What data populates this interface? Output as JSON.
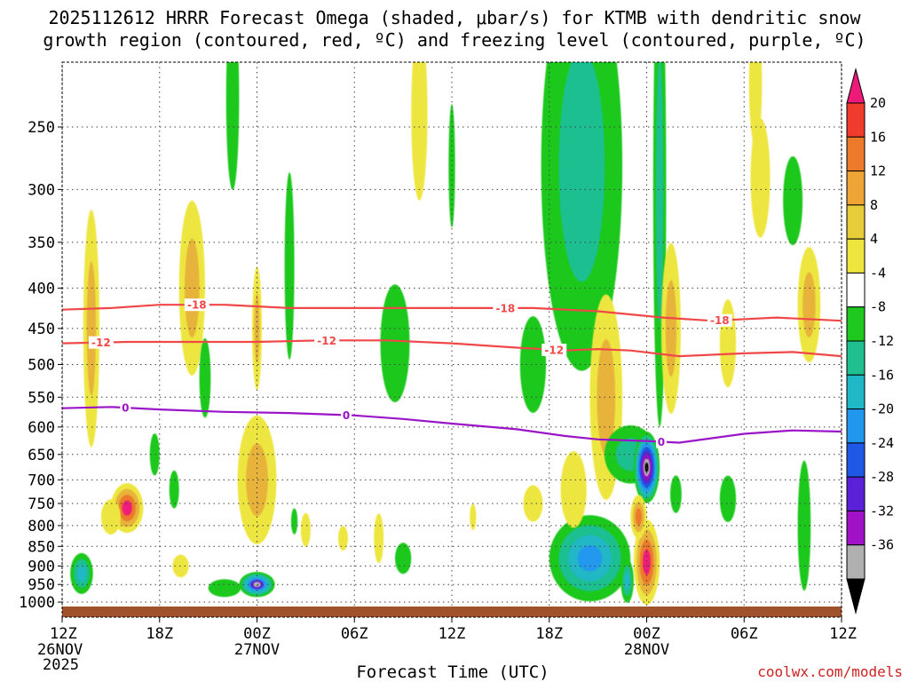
{
  "chart_data": {
    "type": "heatmap",
    "title_line1": "2025112612 HRRR Forecast Omega (shaded, μbar/s) for KTMB with dendritic snow",
    "title_line2": "growth region (contoured, red, ºC) and freezing level (contoured, purple, ºC)",
    "xlabel": "Forecast Time (UTC)",
    "credit": "coolwx.com/models",
    "x_hours_range": [
      0,
      48
    ],
    "x_ticks": [
      {
        "hour": 0,
        "label": "12Z",
        "sub1": "26NOV",
        "sub2": "2025"
      },
      {
        "hour": 6,
        "label": "18Z"
      },
      {
        "hour": 12,
        "label": "00Z",
        "sub1": "27NOV"
      },
      {
        "hour": 18,
        "label": "06Z"
      },
      {
        "hour": 24,
        "label": "12Z"
      },
      {
        "hour": 30,
        "label": "18Z"
      },
      {
        "hour": 36,
        "label": "00Z",
        "sub1": "28NOV"
      },
      {
        "hour": 42,
        "label": "06Z"
      },
      {
        "hour": 48,
        "label": "12Z"
      }
    ],
    "y_pressure_range": [
      1025,
      200
    ],
    "y_ticks": [
      250,
      300,
      350,
      400,
      450,
      500,
      550,
      600,
      650,
      700,
      750,
      800,
      850,
      900,
      950,
      1000
    ],
    "colorbar": {
      "labels": [
        "20",
        "16",
        "12",
        "8",
        "4",
        "-4",
        "-8",
        "-12",
        "-16",
        "-20",
        "-24",
        "-28",
        "-32",
        "-36"
      ],
      "colors": [
        "#ee1a7a",
        "#f03c2d",
        "#ec7a2a",
        "#efa535",
        "#e7cd3a",
        "#eee63f",
        "#ffffff",
        "#1ec81e",
        "#1fbf8f",
        "#20b7c6",
        "#2198ee",
        "#1f58e6",
        "#5a21d8",
        "#a011c8",
        "#b0b0b0",
        "#000000"
      ]
    },
    "contours": [
      {
        "name": "dgz-top",
        "value": -18,
        "color": "#f04848",
        "points": [
          [
            0,
            426
          ],
          [
            3,
            424
          ],
          [
            6,
            420
          ],
          [
            10,
            420
          ],
          [
            14,
            424
          ],
          [
            19,
            424
          ],
          [
            24,
            424
          ],
          [
            29,
            424
          ],
          [
            33,
            428
          ],
          [
            37,
            436
          ],
          [
            40,
            440
          ],
          [
            44,
            436
          ],
          [
            48,
            440
          ]
        ],
        "labels": [
          [
            8.3,
            -18
          ],
          [
            27.3,
            -18
          ],
          [
            40.5,
            -18
          ]
        ]
      },
      {
        "name": "dgz-bottom",
        "value": -12,
        "color": "#f04848",
        "points": [
          [
            0,
            470
          ],
          [
            4,
            468
          ],
          [
            8,
            468
          ],
          [
            12,
            468
          ],
          [
            16,
            466
          ],
          [
            20,
            466
          ],
          [
            24,
            470
          ],
          [
            28,
            476
          ],
          [
            31,
            480
          ],
          [
            33,
            478
          ],
          [
            35,
            480
          ],
          [
            38,
            488
          ],
          [
            42,
            484
          ],
          [
            45,
            482
          ],
          [
            48,
            488
          ]
        ],
        "labels": [
          [
            2.4,
            -12
          ],
          [
            16.3,
            -12
          ],
          [
            30.3,
            -12
          ]
        ]
      },
      {
        "name": "freezing-level",
        "value": 0,
        "color": "#9a14c8",
        "points": [
          [
            0,
            568
          ],
          [
            3,
            566
          ],
          [
            6,
            570
          ],
          [
            10,
            574
          ],
          [
            14,
            576
          ],
          [
            18,
            580
          ],
          [
            21,
            586
          ],
          [
            24,
            594
          ],
          [
            28,
            604
          ],
          [
            31,
            616
          ],
          [
            33,
            622
          ],
          [
            36,
            625
          ],
          [
            38,
            628
          ],
          [
            42,
            612
          ],
          [
            45,
            606
          ],
          [
            48,
            608
          ]
        ],
        "labels": [
          [
            3.9,
            0
          ],
          [
            17.5,
            0
          ],
          [
            36.9,
            0
          ]
        ]
      }
    ],
    "omega_blobs": [
      {
        "x": 1.8,
        "p": 450,
        "dx": 0.5,
        "dp": 150,
        "rings": [
          4,
          8
        ]
      },
      {
        "x": 4.0,
        "p": 760,
        "dx": 1.0,
        "dp": 55,
        "rings": [
          4,
          8,
          12,
          20
        ]
      },
      {
        "x": 3.0,
        "p": 780,
        "dx": 0.6,
        "dp": 40,
        "rings": [
          4
        ]
      },
      {
        "x": 1.2,
        "p": 920,
        "dx": 0.7,
        "dp": 55,
        "rings": [
          -4,
          -8,
          -12
        ]
      },
      {
        "x": 8.0,
        "p": 400,
        "dx": 0.8,
        "dp": 100,
        "rings": [
          4,
          8
        ]
      },
      {
        "x": 8.8,
        "p": 520,
        "dx": 0.35,
        "dp": 60,
        "rings": [
          -4
        ]
      },
      {
        "x": 12.0,
        "p": 700,
        "dx": 1.2,
        "dp": 130,
        "rings": [
          4,
          8
        ]
      },
      {
        "x": 12.0,
        "p": 950,
        "dx": 1.1,
        "dp": 35,
        "rings": [
          -4,
          -8,
          -12,
          -16,
          -24,
          -32
        ]
      },
      {
        "x": 10.0,
        "p": 960,
        "dx": 1.0,
        "dp": 25,
        "rings": [
          -4
        ]
      },
      {
        "x": 12.0,
        "p": 450,
        "dx": 0.3,
        "dp": 80,
        "rings": [
          4,
          8
        ]
      },
      {
        "x": 14.0,
        "p": 375,
        "dx": 0.3,
        "dp": 100,
        "rings": [
          -4
        ]
      },
      {
        "x": 10.5,
        "p": 230,
        "dx": 0.4,
        "dp": 60,
        "rings": [
          -4
        ]
      },
      {
        "x": 20.5,
        "p": 470,
        "dx": 0.9,
        "dp": 80,
        "rings": [
          -4
        ]
      },
      {
        "x": 19.5,
        "p": 830,
        "dx": 0.3,
        "dp": 60,
        "rings": [
          4
        ]
      },
      {
        "x": 21.0,
        "p": 880,
        "dx": 0.5,
        "dp": 40,
        "rings": [
          -4
        ]
      },
      {
        "x": 29.0,
        "p": 500,
        "dx": 0.8,
        "dp": 70,
        "rings": [
          -4
        ]
      },
      {
        "x": 32.0,
        "p": 280,
        "dx": 2.5,
        "dp": 150,
        "rings": [
          -4,
          -8
        ]
      },
      {
        "x": 32.5,
        "p": 880,
        "dx": 2.5,
        "dp": 110,
        "rings": [
          -4,
          -8,
          -12,
          -16
        ]
      },
      {
        "x": 31.5,
        "p": 720,
        "dx": 0.8,
        "dp": 80,
        "rings": [
          4
        ]
      },
      {
        "x": 33.5,
        "p": 550,
        "dx": 1.0,
        "dp": 160,
        "rings": [
          4,
          8
        ]
      },
      {
        "x": 35.0,
        "p": 650,
        "dx": 1.6,
        "dp": 55,
        "rings": [
          -4,
          -8
        ]
      },
      {
        "x": 36.0,
        "p": 675,
        "dx": 0.8,
        "dp": 70,
        "rings": [
          -4,
          -8,
          -12,
          -16,
          -20,
          -24,
          -28,
          -32,
          -36
        ]
      },
      {
        "x": 36.0,
        "p": 890,
        "dx": 0.8,
        "dp": 110,
        "rings": [
          4,
          8,
          12,
          20
        ]
      },
      {
        "x": 35.5,
        "p": 780,
        "dx": 0.5,
        "dp": 50,
        "rings": [
          4,
          8,
          12
        ]
      },
      {
        "x": 34.8,
        "p": 940,
        "dx": 0.4,
        "dp": 60,
        "rings": [
          -4,
          -8,
          -12
        ]
      },
      {
        "x": 36.8,
        "p": 300,
        "dx": 0.4,
        "dp": 180,
        "rings": [
          -4,
          -8
        ]
      },
      {
        "x": 37.5,
        "p": 450,
        "dx": 0.6,
        "dp": 110,
        "rings": [
          4,
          8
        ]
      },
      {
        "x": 37.8,
        "p": 730,
        "dx": 0.35,
        "dp": 40,
        "rings": [
          -4
        ]
      },
      {
        "x": 41.0,
        "p": 470,
        "dx": 0.5,
        "dp": 60,
        "rings": [
          4
        ]
      },
      {
        "x": 41.0,
        "p": 740,
        "dx": 0.5,
        "dp": 50,
        "rings": [
          -4
        ]
      },
      {
        "x": 43.0,
        "p": 290,
        "dx": 0.6,
        "dp": 50,
        "rings": [
          4
        ]
      },
      {
        "x": 45.0,
        "p": 310,
        "dx": 0.6,
        "dp": 40,
        "rings": [
          -4
        ]
      },
      {
        "x": 46.0,
        "p": 420,
        "dx": 0.7,
        "dp": 70,
        "rings": [
          4,
          8
        ]
      },
      {
        "x": 45.7,
        "p": 800,
        "dx": 0.4,
        "dp": 150,
        "rings": [
          -4
        ]
      },
      {
        "x": 29.0,
        "p": 750,
        "dx": 0.6,
        "dp": 40,
        "rings": [
          4
        ]
      },
      {
        "x": 25.3,
        "p": 780,
        "dx": 0.2,
        "dp": 30,
        "rings": [
          4
        ]
      },
      {
        "x": 17.3,
        "p": 830,
        "dx": 0.3,
        "dp": 30,
        "rings": [
          4
        ]
      },
      {
        "x": 7.3,
        "p": 900,
        "dx": 0.5,
        "dp": 30,
        "rings": [
          4
        ]
      },
      {
        "x": 5.7,
        "p": 650,
        "dx": 0.3,
        "dp": 40,
        "rings": [
          -4
        ]
      },
      {
        "x": 6.9,
        "p": 720,
        "dx": 0.3,
        "dp": 40,
        "rings": [
          -4
        ]
      },
      {
        "x": 15.0,
        "p": 810,
        "dx": 0.3,
        "dp": 40,
        "rings": [
          4
        ]
      },
      {
        "x": 14.3,
        "p": 790,
        "dx": 0.2,
        "dp": 30,
        "rings": [
          -4
        ]
      },
      {
        "x": 24.0,
        "p": 280,
        "dx": 0.2,
        "dp": 50,
        "rings": [
          -4
        ]
      },
      {
        "x": 22.0,
        "p": 240,
        "dx": 0.5,
        "dp": 60,
        "rings": [
          4
        ]
      },
      {
        "x": 42.7,
        "p": 220,
        "dx": 0.4,
        "dp": 40,
        "rings": [
          4
        ]
      }
    ]
  }
}
